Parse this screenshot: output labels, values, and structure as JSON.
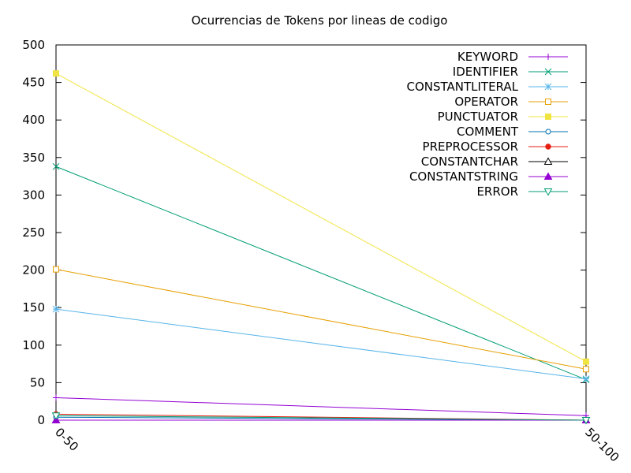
{
  "chart_data": {
    "type": "line",
    "title": "Ocurrencias de Tokens por lineas de codigo",
    "xlabel": "",
    "ylabel": "",
    "categories": [
      "0-50",
      "50-100"
    ],
    "ylim": [
      0,
      500
    ],
    "yticks": [
      0,
      50,
      100,
      150,
      200,
      250,
      300,
      350,
      400,
      450,
      500
    ],
    "grid": false,
    "legend_position": "top-right",
    "series": [
      {
        "name": "KEYWORD",
        "values": [
          30,
          6
        ],
        "color": "#9400d3",
        "marker": "plus"
      },
      {
        "name": "IDENTIFIER",
        "values": [
          338,
          54
        ],
        "color": "#009e73",
        "marker": "cross"
      },
      {
        "name": "CONSTANTLITERAL",
        "values": [
          148,
          55
        ],
        "color": "#56b4e9",
        "marker": "star"
      },
      {
        "name": "OPERATOR",
        "values": [
          201,
          68
        ],
        "color": "#e69f00",
        "marker": "square-open"
      },
      {
        "name": "PUNCTUATOR",
        "values": [
          462,
          78
        ],
        "color": "#f0e442",
        "marker": "square-filled"
      },
      {
        "name": "COMMENT",
        "values": [
          4,
          0
        ],
        "color": "#0072b2",
        "marker": "circle-open"
      },
      {
        "name": "PREPROCESSOR",
        "values": [
          8,
          0
        ],
        "color": "#e51e10",
        "marker": "circle-filled"
      },
      {
        "name": "CONSTANTCHAR",
        "values": [
          0,
          0
        ],
        "color": "#000000",
        "marker": "triangle-open"
      },
      {
        "name": "CONSTANTSTRING",
        "values": [
          0,
          0
        ],
        "color": "#9400d3",
        "marker": "triangle-filled"
      },
      {
        "name": "ERROR",
        "values": [
          6,
          0
        ],
        "color": "#009e73",
        "marker": "triangle-down-open"
      }
    ]
  }
}
